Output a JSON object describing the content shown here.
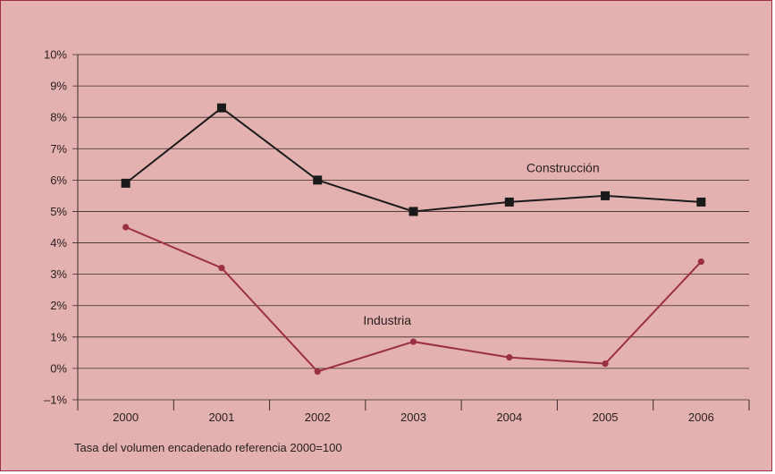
{
  "chart_data": {
    "type": "line",
    "title": "",
    "xlabel": "",
    "ylabel": "",
    "categories": [
      "2000",
      "2001",
      "2002",
      "2003",
      "2004",
      "2005",
      "2006"
    ],
    "ylim": [
      -1,
      10
    ],
    "yticks": [
      "–1%",
      "0%",
      "1%",
      "2%",
      "3%",
      "4%",
      "5%",
      "6%",
      "7%",
      "8%",
      "9%",
      "10%"
    ],
    "grid": true,
    "series": [
      {
        "name": "Construcción",
        "color": "#1a1a1a",
        "marker": "square",
        "values": [
          5.9,
          8.3,
          6.0,
          5.0,
          5.3,
          5.5,
          5.3
        ]
      },
      {
        "name": "Industria",
        "color": "#9b2f44",
        "marker": "circle",
        "values": [
          4.5,
          3.2,
          -0.1,
          0.85,
          0.35,
          0.15,
          3.4
        ]
      }
    ],
    "note": "Tasa del volumen encadenado referencia 2000=100"
  }
}
